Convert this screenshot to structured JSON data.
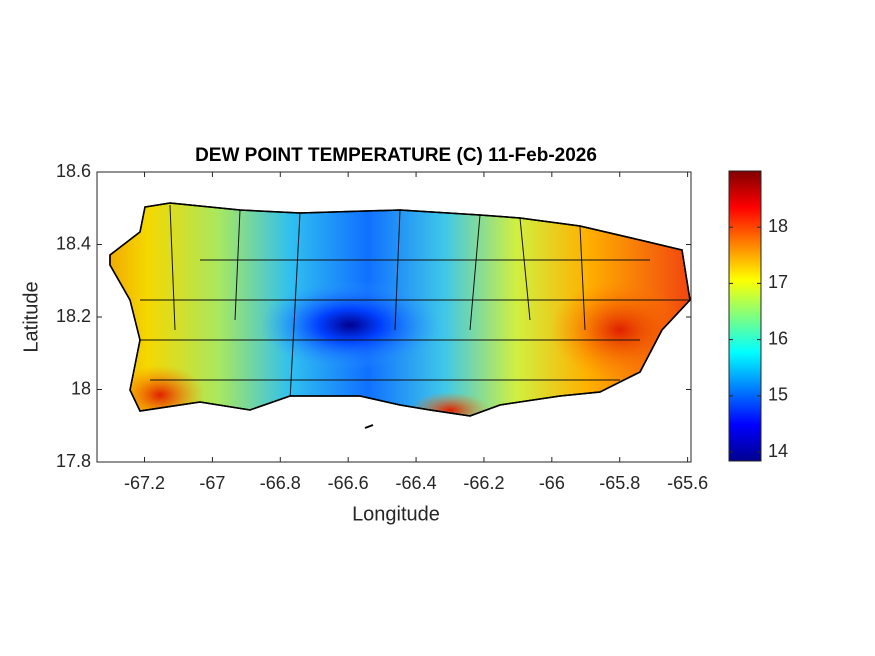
{
  "chart_data": {
    "type": "map",
    "title": "DEW POINT TEMPERATURE (C) 11-Feb-2026",
    "xlabel": "Longitude",
    "ylabel": "Latitude",
    "xlim": [
      -67.34,
      -65.59
    ],
    "ylim": [
      17.8,
      18.6
    ],
    "xticks": [
      -67.2,
      -67,
      -66.8,
      -66.6,
      -66.4,
      -66.2,
      -66,
      -65.8,
      -65.6
    ],
    "yticks": [
      17.8,
      18,
      18.2,
      18.4,
      18.6
    ],
    "colormap": "jet",
    "colorbar": {
      "lim": [
        13.84,
        19.0
      ],
      "ticks": [
        14,
        15,
        16,
        17,
        18
      ]
    }
  }
}
